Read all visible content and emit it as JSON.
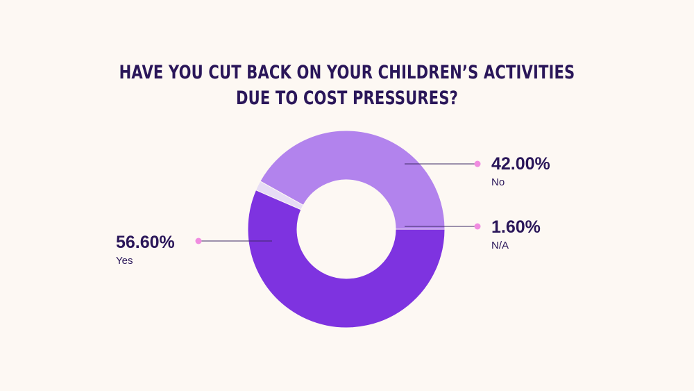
{
  "title_lines": [
    "HAVE YOU CUT BACK ON YOUR CHILDREN’S ACTIVITIES",
    "DUE TO COST PRESSURES?"
  ],
  "colors": {
    "background": "#fdf8f3",
    "text": "#2a1659",
    "yes": "#7e33e0",
    "no": "#b283ed",
    "na": "#e7dcf5",
    "marker": "#f08ce0",
    "leader": "#3d2a66"
  },
  "chart_data": {
    "type": "pie",
    "variant": "donut",
    "title": "HAVE YOU CUT BACK ON YOUR CHILDREN’S ACTIVITIES DUE TO COST PRESSURES?",
    "categories": [
      "No",
      "N/A",
      "Yes"
    ],
    "values": [
      42.0,
      1.6,
      56.6
    ],
    "value_labels": [
      "42.00%",
      "1.60%",
      "56.60%"
    ],
    "unit": "%",
    "label_placement": [
      "right",
      "right",
      "left"
    ]
  }
}
